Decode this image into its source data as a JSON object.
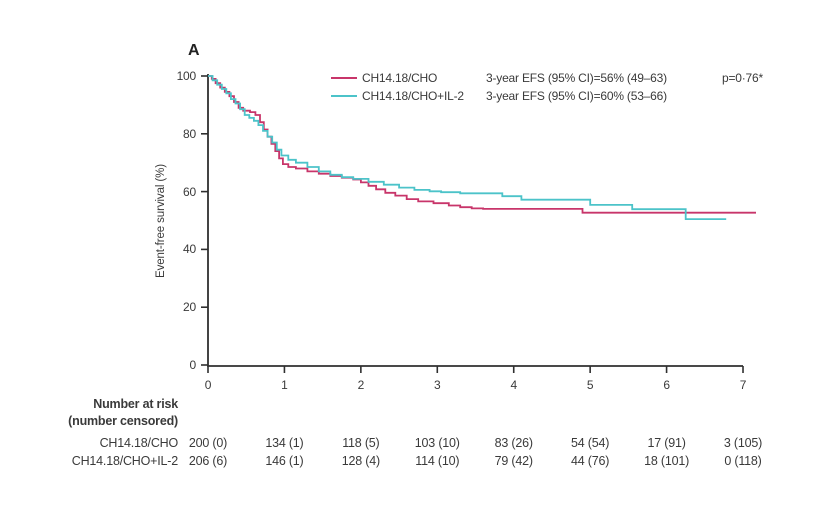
{
  "panel_label": "A",
  "ylabel": "Event-free survival (%)",
  "colors": {
    "series1": "#c8356a",
    "series2": "#4cc3c9",
    "axis": "#2f2f2f",
    "text": "#3a3a3a"
  },
  "legend": {
    "p_value": "p=0·76*",
    "entries": [
      {
        "label": "CH14.18/CHO",
        "stat": "3-year EFS (95% CI)=56% (49–63)"
      },
      {
        "label": "CH14.18/CHO+IL-2",
        "stat": "3-year EFS (95% CI)=60% (53–66)"
      }
    ]
  },
  "chart_data": {
    "type": "line",
    "subtype": "kaplan_meier_step",
    "title": "A",
    "xlabel": "",
    "ylabel": "Event-free survival (%)",
    "xlim": [
      0,
      7
    ],
    "ylim": [
      0,
      100
    ],
    "xticks": [
      "0",
      "1",
      "2",
      "3",
      "4",
      "5",
      "6",
      "7"
    ],
    "yticks": [
      "0",
      "20",
      "40",
      "60",
      "80",
      "100"
    ],
    "grid": false,
    "legend_position": "top-center",
    "series": [
      {
        "name": "CH14.18/CHO",
        "color": "#c8356a",
        "three_year_efs": "56% (49–63)",
        "points": [
          [
            0,
            100
          ],
          [
            0.05,
            99
          ],
          [
            0.1,
            97.5
          ],
          [
            0.16,
            96
          ],
          [
            0.22,
            94.5
          ],
          [
            0.28,
            93
          ],
          [
            0.34,
            91
          ],
          [
            0.4,
            89
          ],
          [
            0.46,
            88
          ],
          [
            0.55,
            87.5
          ],
          [
            0.62,
            86.5
          ],
          [
            0.68,
            84
          ],
          [
            0.73,
            81.5
          ],
          [
            0.78,
            79
          ],
          [
            0.83,
            76.5
          ],
          [
            0.88,
            74
          ],
          [
            0.93,
            71.5
          ],
          [
            0.98,
            69.5
          ],
          [
            1.05,
            68.5
          ],
          [
            1.15,
            68
          ],
          [
            1.3,
            67
          ],
          [
            1.45,
            66.2
          ],
          [
            1.6,
            65.4
          ],
          [
            1.75,
            64.8
          ],
          [
            1.9,
            64.2
          ],
          [
            2.0,
            63.2
          ],
          [
            2.1,
            62
          ],
          [
            2.2,
            60.8
          ],
          [
            2.32,
            59.6
          ],
          [
            2.45,
            58.6
          ],
          [
            2.6,
            57.4
          ],
          [
            2.75,
            56.6
          ],
          [
            2.95,
            56
          ],
          [
            3.15,
            55.2
          ],
          [
            3.3,
            54.6
          ],
          [
            3.45,
            54.2
          ],
          [
            3.6,
            54
          ],
          [
            4.9,
            52.7
          ],
          [
            7.17,
            52.7
          ]
        ]
      },
      {
        "name": "CH14.18/CHO+IL-2",
        "color": "#4cc3c9",
        "three_year_efs": "60% (53–66)",
        "points": [
          [
            0,
            100
          ],
          [
            0.06,
            98.5
          ],
          [
            0.12,
            97
          ],
          [
            0.18,
            95.5
          ],
          [
            0.24,
            94
          ],
          [
            0.3,
            92
          ],
          [
            0.36,
            90.5
          ],
          [
            0.42,
            88.5
          ],
          [
            0.48,
            86.5
          ],
          [
            0.54,
            85.5
          ],
          [
            0.6,
            84.5
          ],
          [
            0.66,
            83
          ],
          [
            0.72,
            81
          ],
          [
            0.78,
            79
          ],
          [
            0.84,
            77
          ],
          [
            0.9,
            74.5
          ],
          [
            0.96,
            72.5
          ],
          [
            1.05,
            71
          ],
          [
            1.15,
            70
          ],
          [
            1.3,
            68.5
          ],
          [
            1.45,
            67
          ],
          [
            1.6,
            65.8
          ],
          [
            1.75,
            65
          ],
          [
            1.9,
            64.4
          ],
          [
            2.1,
            63.4
          ],
          [
            2.3,
            62.4
          ],
          [
            2.5,
            61.4
          ],
          [
            2.7,
            60.6
          ],
          [
            2.9,
            60.1
          ],
          [
            3.05,
            59.8
          ],
          [
            3.3,
            59.4
          ],
          [
            3.85,
            58.4
          ],
          [
            4.1,
            57.2
          ],
          [
            5.0,
            55.4
          ],
          [
            5.55,
            53.9
          ],
          [
            6.25,
            50.5
          ],
          [
            6.78,
            50.5
          ]
        ]
      }
    ]
  },
  "risk_table": {
    "title_line1": "Number at risk",
    "title_line2": "(number censored)",
    "timepoints": [
      "0",
      "1",
      "2",
      "3",
      "4",
      "5",
      "6",
      "7"
    ],
    "rows": [
      {
        "label": "CH14.18/CHO",
        "values": [
          "200 (0)",
          "134 (1)",
          "118 (5)",
          "103 (10)",
          "83 (26)",
          "54 (54)",
          "17 (91)",
          "3 (105)"
        ]
      },
      {
        "label": "CH14.18/CHO+IL-2",
        "values": [
          "206 (6)",
          "146 (1)",
          "128 (4)",
          "114 (10)",
          "79 (42)",
          "44 (76)",
          "18 (101)",
          "0 (118)"
        ]
      }
    ]
  }
}
